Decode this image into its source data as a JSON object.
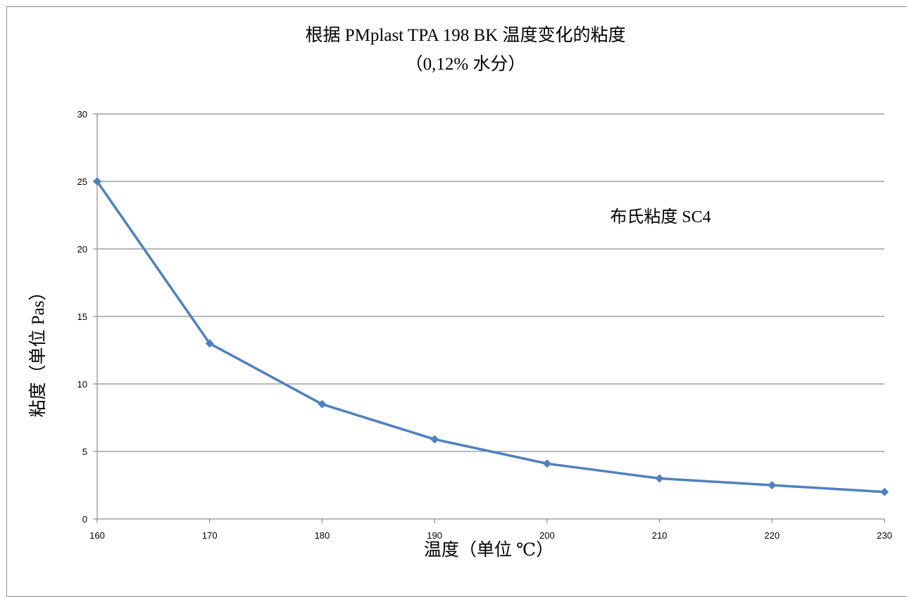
{
  "chart_data": {
    "type": "line",
    "title": "根据 PMplast TPA 198 BK 温度变化的粘度",
    "subtitle": "（0,12% 水分）",
    "annotation": "布氏粘度 SC4",
    "xlabel": "温度（单位 ℃）",
    "ylabel": "粘度（单位 Pas）",
    "x": [
      160,
      170,
      180,
      190,
      200,
      210,
      220,
      230
    ],
    "xlim": [
      160,
      230
    ],
    "ylim": [
      0,
      30
    ],
    "yticks": [
      0,
      5,
      10,
      15,
      20,
      25,
      30
    ],
    "series": [
      {
        "values": [
          25,
          13,
          8.5,
          5.9,
          4.1,
          3.0,
          2.5,
          2.0
        ]
      }
    ],
    "grid": true,
    "legend": "none",
    "colors": {
      "line": "#4f81bd",
      "marker": "#4f81bd",
      "grid": "#8c8c8c",
      "axis": "#8c8c8c"
    }
  }
}
